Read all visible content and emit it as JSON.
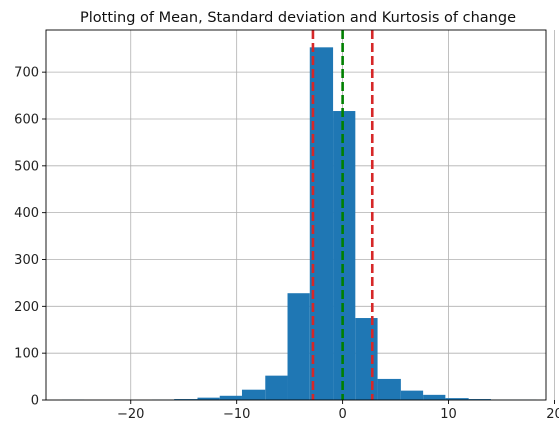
{
  "chart_data": {
    "type": "bar",
    "title": "Plotting of Mean, Standard deviation and Kurtosis of change",
    "xlabel": "",
    "ylabel": "",
    "xlim": [
      -28,
      19.2
    ],
    "ylim": [
      0,
      790
    ],
    "xticks": [
      -20,
      -10,
      0,
      10,
      20
    ],
    "yticks": [
      0,
      100,
      200,
      300,
      400,
      500,
      600,
      700
    ],
    "grid": true,
    "bins": [
      {
        "x0": -26.5,
        "x1": -24.4,
        "count": 1
      },
      {
        "x0": -24.4,
        "x1": -22.3,
        "count": 0
      },
      {
        "x0": -22.3,
        "x1": -20.1,
        "count": 0
      },
      {
        "x0": -20.1,
        "x1": -18.0,
        "count": 0
      },
      {
        "x0": -18.0,
        "x1": -15.9,
        "count": 1
      },
      {
        "x0": -15.9,
        "x1": -13.7,
        "count": 2
      },
      {
        "x0": -13.7,
        "x1": -11.6,
        "count": 5
      },
      {
        "x0": -11.6,
        "x1": -9.5,
        "count": 9
      },
      {
        "x0": -9.5,
        "x1": -7.3,
        "count": 22
      },
      {
        "x0": -7.3,
        "x1": -5.2,
        "count": 52
      },
      {
        "x0": -5.2,
        "x1": -3.1,
        "count": 228
      },
      {
        "x0": -3.1,
        "x1": -0.9,
        "count": 753
      },
      {
        "x0": -0.9,
        "x1": 1.2,
        "count": 617
      },
      {
        "x0": 1.2,
        "x1": 3.3,
        "count": 175
      },
      {
        "x0": 3.3,
        "x1": 5.5,
        "count": 45
      },
      {
        "x0": 5.5,
        "x1": 7.6,
        "count": 20
      },
      {
        "x0": 7.6,
        "x1": 9.7,
        "count": 11
      },
      {
        "x0": 9.7,
        "x1": 11.9,
        "count": 4
      },
      {
        "x0": 11.9,
        "x1": 14.0,
        "count": 2
      },
      {
        "x0": 14.0,
        "x1": 16.1,
        "count": 1
      },
      {
        "x0": 16.1,
        "x1": 18.3,
        "count": 1
      }
    ],
    "bar_color": "#1f77b4",
    "vlines": [
      {
        "x": 0.0,
        "color": "#008000",
        "style": "dashed"
      },
      {
        "x": -2.8,
        "color": "#d62728",
        "style": "dashed"
      },
      {
        "x": 2.8,
        "color": "#d62728",
        "style": "dashed"
      }
    ]
  }
}
